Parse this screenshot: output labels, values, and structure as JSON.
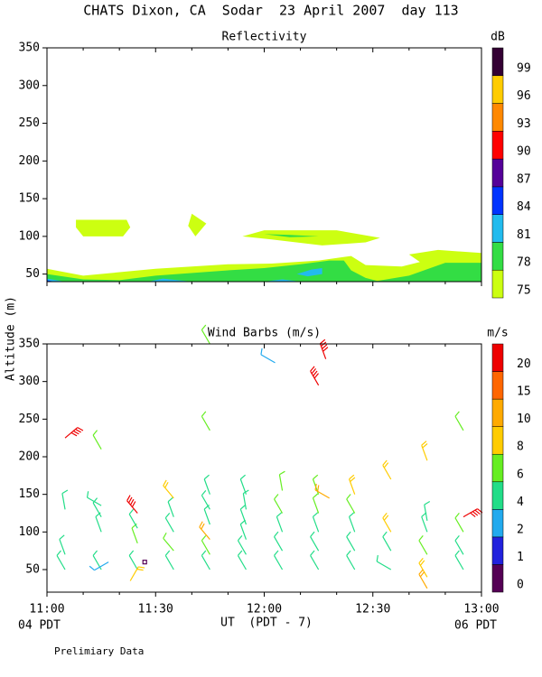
{
  "title": "CHATS Dixon, CA  Sodar  23 April 2007  day 113",
  "ylabel": "Altitude (m)",
  "xlabel": "UT  (PDT - 7)",
  "xlabel_left": "04 PDT",
  "xlabel_right": "06 PDT",
  "footnote": "Prelimiary Data",
  "chart_data": [
    {
      "type": "contour",
      "title": "Reflectivity",
      "xlim": [
        0,
        120
      ],
      "ylim": [
        40,
        350
      ],
      "yticks": [
        50,
        100,
        150,
        200,
        250,
        300,
        350
      ],
      "colorbar": {
        "label": "dB",
        "levels": [
          75,
          78,
          81,
          84,
          87,
          90,
          93,
          96,
          99
        ],
        "colors": [
          "#ccff11",
          "#33dd44",
          "#22bbee",
          "#0033ff",
          "#550099",
          "#ff0000",
          "#ff8800",
          "#ffcc00",
          "#330033"
        ]
      },
      "regions": [
        {
          "level": 75,
          "t": [
            8,
            22,
            23,
            21,
            10,
            8
          ],
          "alt": [
            122,
            122,
            112,
            100,
            100,
            112
          ]
        },
        {
          "level": 75,
          "t": [
            40,
            44,
            41,
            39
          ],
          "alt": [
            130,
            117,
            100,
            114
          ]
        },
        {
          "level": 75,
          "t": [
            54,
            60,
            80,
            92,
            88,
            76,
            62
          ],
          "alt": [
            100,
            108,
            108,
            98,
            92,
            88,
            96
          ]
        },
        {
          "level": 75,
          "t": [
            0,
            10,
            30,
            50,
            62,
            75,
            84,
            88,
            98,
            103,
            100,
            108,
            120,
            120,
            0
          ],
          "alt": [
            57,
            48,
            57,
            63,
            64,
            68,
            74,
            62,
            60,
            66,
            76,
            82,
            78,
            40,
            40
          ]
        },
        {
          "level": 78,
          "t": [
            0,
            10,
            20,
            30,
            50,
            60,
            70,
            78,
            82,
            84,
            88,
            92,
            0
          ],
          "alt": [
            50,
            43,
            42,
            48,
            55,
            58,
            63,
            68,
            68,
            55,
            45,
            40,
            40
          ]
        },
        {
          "level": 78,
          "t": [
            90,
            100,
            110,
            120,
            120
          ],
          "alt": [
            40,
            48,
            65,
            65,
            40
          ]
        },
        {
          "level": 78,
          "t": [
            60,
            67,
            75,
            67
          ],
          "alt": [
            103,
            102,
            100,
            99
          ]
        },
        {
          "level": 81,
          "t": [
            0,
            5,
            0
          ],
          "alt": [
            44,
            40,
            40
          ]
        },
        {
          "level": 81,
          "t": [
            28,
            32,
            40
          ],
          "alt": [
            40,
            44,
            40
          ]
        },
        {
          "level": 81,
          "t": [
            60,
            65,
            70
          ],
          "alt": [
            40,
            43,
            40
          ]
        },
        {
          "level": 81,
          "t": [
            69,
            73,
            76,
            76,
            72
          ],
          "alt": [
            50,
            56,
            58,
            50,
            47
          ]
        },
        {
          "level": 84,
          "t": [
            0,
            2,
            0
          ],
          "alt": [
            42,
            40,
            40
          ]
        }
      ]
    },
    {
      "type": "barbs",
      "title": "Wind Barbs (m/s)",
      "xlim": [
        0,
        120
      ],
      "ylim": [
        20,
        350
      ],
      "yticks": [
        50,
        100,
        150,
        200,
        250,
        300,
        350
      ],
      "xticks": [
        {
          "value": 0,
          "label": "11:00"
        },
        {
          "value": 30,
          "label": "11:30"
        },
        {
          "value": 60,
          "label": "12:00"
        },
        {
          "value": 90,
          "label": "12:30"
        },
        {
          "value": 120,
          "label": "13:00"
        }
      ],
      "xminorticks": [
        10,
        20,
        40,
        50,
        70,
        80,
        100,
        110
      ],
      "colorbar": {
        "label": "m/s",
        "levels": [
          0,
          1,
          2,
          4,
          6,
          8,
          10,
          15,
          20
        ],
        "colors": [
          "#550055",
          "#2222dd",
          "#22aaee",
          "#22dd88",
          "#66ee22",
          "#ffcc00",
          "#ffaa00",
          "#ff6600",
          "#ee0000"
        ]
      },
      "time": [
        5,
        5,
        5,
        5,
        15,
        15,
        15,
        15,
        15,
        17,
        25,
        23,
        25,
        25,
        25,
        27,
        35,
        35,
        35,
        35,
        35,
        45,
        45,
        45,
        45,
        45,
        45,
        45,
        45,
        55,
        55,
        55,
        55,
        55,
        55,
        65,
        65,
        65,
        65,
        65,
        63,
        75,
        75,
        75,
        75,
        75,
        75,
        77,
        78,
        85,
        85,
        85,
        85,
        85,
        95,
        95,
        95,
        95,
        105,
        105,
        105,
        105,
        105,
        105,
        115,
        115,
        115,
        115,
        115
      ],
      "altitude": [
        50,
        70,
        130,
        225,
        50,
        100,
        120,
        135,
        210,
        60,
        50,
        35,
        85,
        105,
        125,
        60,
        50,
        75,
        100,
        120,
        145,
        50,
        70,
        90,
        110,
        130,
        150,
        235,
        350,
        50,
        70,
        90,
        110,
        130,
        150,
        50,
        75,
        100,
        125,
        155,
        325,
        50,
        75,
        100,
        125,
        150,
        295,
        330,
        145,
        50,
        75,
        100,
        125,
        150,
        50,
        75,
        100,
        170,
        40,
        70,
        100,
        115,
        195,
        25,
        50,
        70,
        100,
        120,
        235
      ],
      "speed": [
        5,
        5,
        5,
        20,
        5,
        5,
        5,
        4,
        6,
        3,
        5,
        8,
        6,
        5,
        20,
        0,
        5,
        6,
        5,
        5,
        8,
        5,
        6,
        10,
        5,
        5,
        5,
        6,
        6,
        5,
        5,
        5,
        5,
        5,
        5,
        4,
        5,
        5,
        6,
        6,
        3,
        5,
        5,
        5,
        6,
        6,
        20,
        20,
        10,
        5,
        5,
        5,
        6,
        8,
        4,
        5,
        8,
        8,
        8,
        6,
        5,
        4,
        8,
        10,
        4,
        5,
        6,
        20,
        6
      ],
      "direction": [
        330,
        340,
        350,
        50,
        330,
        340,
        330,
        300,
        330,
        240,
        330,
        30,
        340,
        330,
        320,
        0,
        330,
        320,
        330,
        340,
        320,
        330,
        330,
        320,
        340,
        330,
        340,
        330,
        330,
        330,
        330,
        340,
        340,
        350,
        340,
        330,
        330,
        340,
        330,
        350,
        300,
        330,
        330,
        340,
        340,
        340,
        330,
        340,
        300,
        330,
        330,
        340,
        330,
        340,
        300,
        330,
        330,
        330,
        330,
        330,
        340,
        350,
        340,
        330,
        330,
        330,
        330,
        60,
        330
      ]
    }
  ]
}
